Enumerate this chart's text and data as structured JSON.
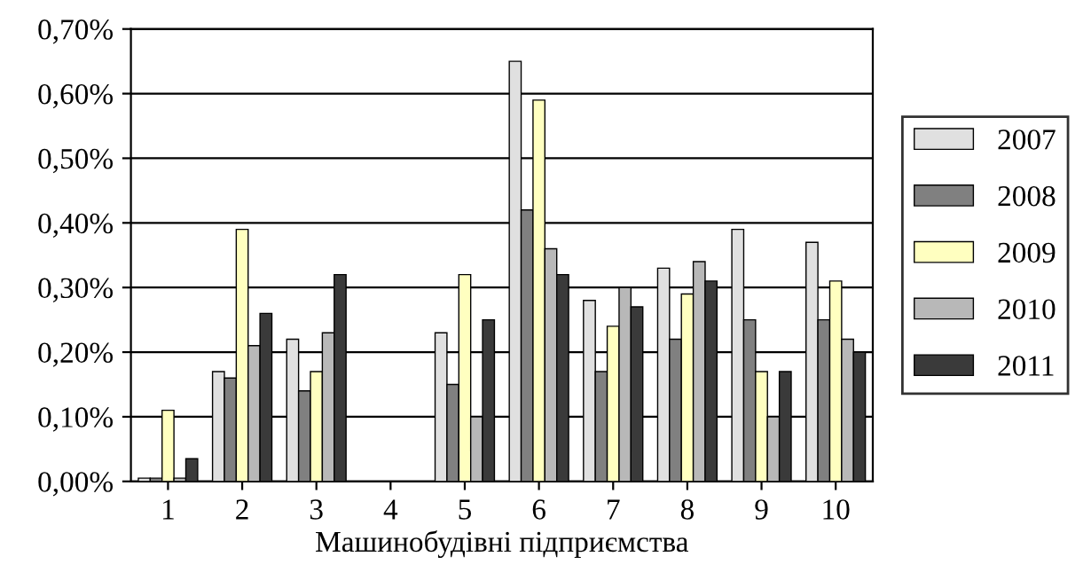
{
  "chart_data": {
    "type": "bar",
    "xlabel": "Машинобудівні підприємства",
    "categories": [
      "1",
      "2",
      "3",
      "4",
      "5",
      "6",
      "7",
      "8",
      "9",
      "10"
    ],
    "series": [
      {
        "name": "2007",
        "color": "#e0e0e0",
        "values": [
          0.005,
          0.17,
          0.22,
          null,
          0.23,
          0.65,
          0.28,
          0.33,
          0.39,
          0.37
        ]
      },
      {
        "name": "2008",
        "color": "#808080",
        "values": [
          0.005,
          0.16,
          0.14,
          null,
          0.15,
          0.42,
          0.17,
          0.22,
          0.25,
          0.25
        ]
      },
      {
        "name": "2009",
        "color": "#ffffc0",
        "values": [
          0.11,
          0.39,
          0.17,
          null,
          0.32,
          0.59,
          0.24,
          0.29,
          0.17,
          0.31
        ]
      },
      {
        "name": "2010",
        "color": "#b8b8b8",
        "values": [
          0.005,
          0.21,
          0.23,
          null,
          0.1,
          0.36,
          0.3,
          0.34,
          0.1,
          0.22
        ]
      },
      {
        "name": "2011",
        "color": "#3a3a3a",
        "values": [
          0.035,
          0.26,
          0.32,
          null,
          0.25,
          0.32,
          0.27,
          0.31,
          0.17,
          0.2
        ]
      }
    ],
    "ylim": [
      0,
      0.7
    ],
    "yticks": [
      {
        "value": 0,
        "label": "0,00%"
      },
      {
        "value": 0.1,
        "label": "0,10%"
      },
      {
        "value": 0.2,
        "label": "0,20%"
      },
      {
        "value": 0.3,
        "label": "0,30%"
      },
      {
        "value": 0.4,
        "label": "0,40%"
      },
      {
        "value": 0.5,
        "label": "0,50%"
      },
      {
        "value": 0.6,
        "label": "0,60%"
      },
      {
        "value": 0.7,
        "label": "0,70%"
      }
    ],
    "grid": "y",
    "legend": "right"
  }
}
